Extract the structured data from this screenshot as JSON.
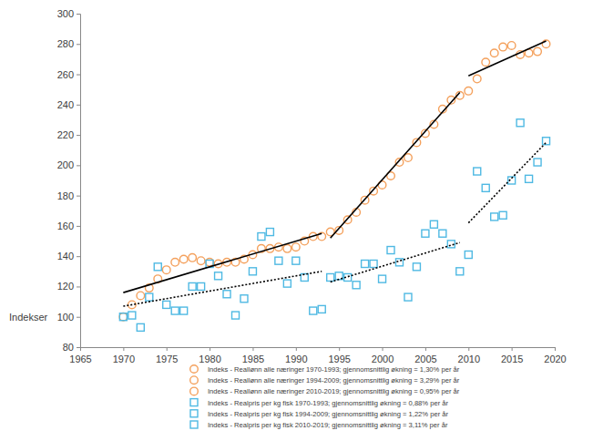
{
  "chart_data": {
    "type": "scatter",
    "y_label": "Indekser",
    "xlim": [
      1965,
      2020
    ],
    "xticks": [
      1965,
      1970,
      1975,
      1980,
      1985,
      1990,
      1995,
      2000,
      2005,
      2010,
      2015,
      2020
    ],
    "ylim": [
      80,
      300
    ],
    "yticks": [
      80,
      100,
      120,
      140,
      160,
      180,
      200,
      220,
      240,
      260,
      280,
      300
    ],
    "grid": false,
    "legend": "bottom",
    "series": [
      {
        "name": "Indeks - Reallønn alle næringer 1970-1993; gjennomsnittlig økning = 1,30% per år",
        "color": "#f4a15d",
        "marker": "circle",
        "line_style": "solid",
        "x": [
          1970,
          1971,
          1972,
          1973,
          1974,
          1975,
          1976,
          1977,
          1978,
          1979,
          1980,
          1981,
          1982,
          1983,
          1984,
          1985,
          1986,
          1987,
          1988,
          1989,
          1990,
          1991,
          1992,
          1993
        ],
        "values": [
          100,
          108,
          114,
          119,
          125,
          131,
          136,
          138,
          139,
          137,
          136,
          135,
          136,
          136,
          138,
          141,
          145,
          145,
          146,
          145,
          146,
          150,
          153,
          153
        ],
        "trend_x": [
          1970,
          1993
        ],
        "trend_values": [
          116,
          155
        ]
      },
      {
        "name": "Indeks - Reallønn alle næringer 1994-2009; gjennomsnittlig økning = 3,29% per år",
        "color": "#f4a15d",
        "marker": "circle",
        "line_style": "solid",
        "x": [
          1994,
          1995,
          1996,
          1997,
          1998,
          1999,
          2000,
          2001,
          2002,
          2003,
          2004,
          2005,
          2006,
          2007,
          2008,
          2009
        ],
        "values": [
          156,
          157,
          164,
          169,
          177,
          183,
          187,
          193,
          202,
          205,
          215,
          221,
          227,
          237,
          243,
          246
        ],
        "trend_x": [
          1994,
          2009
        ],
        "trend_values": [
          152,
          248
        ]
      },
      {
        "name": "Indeks - Reallønn alle næringer 2010-2019; gjennomsnittlig økning = 0,95% per år",
        "color": "#f4a15d",
        "marker": "circle",
        "line_style": "solid",
        "x": [
          2010,
          2011,
          2012,
          2013,
          2014,
          2015,
          2016,
          2017,
          2018,
          2019
        ],
        "values": [
          249,
          257,
          268,
          274,
          278,
          279,
          273,
          274,
          275,
          280
        ],
        "trend_x": [
          2010,
          2019
        ],
        "trend_values": [
          259,
          282
        ]
      },
      {
        "name": "Indeks - Realpris per kg fisk 1970-1993; gjennomsnittlig økning = 0,88% per år",
        "color": "#4fb9e3",
        "marker": "square",
        "line_style": "dotted",
        "x": [
          1970,
          1971,
          1972,
          1973,
          1974,
          1975,
          1976,
          1977,
          1978,
          1979,
          1980,
          1981,
          1982,
          1983,
          1984,
          1985,
          1986,
          1987,
          1988,
          1989,
          1990,
          1991,
          1992,
          1993
        ],
        "values": [
          100,
          101,
          93,
          113,
          133,
          108,
          104,
          104,
          120,
          120,
          135,
          127,
          115,
          101,
          112,
          130,
          153,
          156,
          137,
          122,
          137,
          126,
          104,
          105
        ],
        "trend_x": [
          1970,
          1993
        ],
        "trend_values": [
          107,
          130
        ]
      },
      {
        "name": "Indeks - Realpris per kg fisk 1994-2009; gjennomsnittlig økning = 1,22% per år",
        "color": "#4fb9e3",
        "marker": "square",
        "line_style": "dotted",
        "x": [
          1994,
          1995,
          1996,
          1997,
          1998,
          1999,
          2000,
          2001,
          2002,
          2003,
          2004,
          2005,
          2006,
          2007,
          2008,
          2009
        ],
        "values": [
          126,
          127,
          126,
          121,
          135,
          135,
          125,
          144,
          136,
          113,
          133,
          155,
          161,
          155,
          148,
          130
        ],
        "trend_x": [
          1994,
          2009
        ],
        "trend_values": [
          123,
          149
        ]
      },
      {
        "name": "Indeks - Realpris per kg fisk 2010-2019; gjennomsnittlig økning = 3,11% per år",
        "color": "#4fb9e3",
        "marker": "square",
        "line_style": "dotted",
        "x": [
          2010,
          2011,
          2012,
          2013,
          2014,
          2015,
          2016,
          2017,
          2018,
          2019
        ],
        "values": [
          141,
          196,
          185,
          166,
          167,
          190,
          228,
          191,
          202,
          216
        ],
        "trend_x": [
          2010,
          2019
        ],
        "trend_values": [
          162,
          215
        ]
      }
    ]
  }
}
